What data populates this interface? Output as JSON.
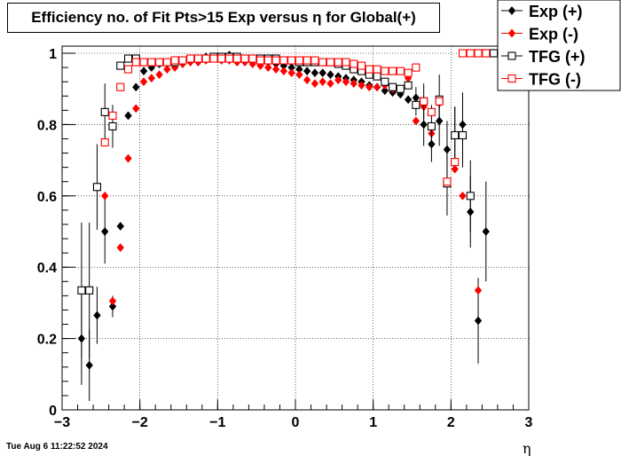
{
  "chart_data": {
    "type": "scatter",
    "title": "Efficiency no. of Fit Pts>15 Exp versus η for Global(+)",
    "xlabel": "η",
    "ylabel": "",
    "xlim": [
      -3,
      3
    ],
    "ylim": [
      0,
      1.02
    ],
    "xticks": [
      "−3",
      "−2",
      "−1",
      "0",
      "1",
      "2",
      "3"
    ],
    "yticks": [
      "0",
      "0.2",
      "0.4",
      "0.6",
      "0.8",
      "1"
    ],
    "grid": true,
    "legend": "top-right",
    "series": [
      {
        "name": "Exp (+)",
        "color": "#000000",
        "marker": "diamond-filled",
        "points": [
          [
            -2.75,
            0.2,
            0.13
          ],
          [
            -2.65,
            0.125,
            0.1
          ],
          [
            -2.55,
            0.265,
            0.08
          ],
          [
            -2.45,
            0.5,
            0.09
          ],
          [
            -2.35,
            0.29,
            0.03
          ],
          [
            -2.25,
            0.515,
            0.0
          ],
          [
            -2.15,
            0.825,
            0.0
          ],
          [
            -2.05,
            0.905,
            0.0
          ],
          [
            -1.95,
            0.95,
            0.0
          ],
          [
            -1.85,
            0.96,
            0.0
          ],
          [
            -1.75,
            0.97,
            0.0
          ],
          [
            -1.65,
            0.975,
            0.0
          ],
          [
            -1.55,
            0.975,
            0.0
          ],
          [
            -1.45,
            0.98,
            0.0
          ],
          [
            -1.35,
            0.985,
            0.0
          ],
          [
            -1.25,
            0.985,
            0.0
          ],
          [
            -1.15,
            0.99,
            0.0
          ],
          [
            -1.05,
            0.99,
            0.0
          ],
          [
            -0.95,
            0.99,
            0.0
          ],
          [
            -0.85,
            0.995,
            0.0
          ],
          [
            -0.75,
            0.99,
            0.0
          ],
          [
            -0.65,
            0.985,
            0.0
          ],
          [
            -0.55,
            0.985,
            0.0
          ],
          [
            -0.45,
            0.98,
            0.0
          ],
          [
            -0.35,
            0.975,
            0.0
          ],
          [
            -0.25,
            0.97,
            0.0
          ],
          [
            -0.15,
            0.965,
            0.0
          ],
          [
            -0.05,
            0.96,
            0.0
          ],
          [
            0.05,
            0.955,
            0.0
          ],
          [
            0.15,
            0.95,
            0.0
          ],
          [
            0.25,
            0.945,
            0.0
          ],
          [
            0.35,
            0.945,
            0.0
          ],
          [
            0.45,
            0.94,
            0.0
          ],
          [
            0.55,
            0.935,
            0.0
          ],
          [
            0.65,
            0.93,
            0.0
          ],
          [
            0.75,
            0.925,
            0.0
          ],
          [
            0.85,
            0.92,
            0.0
          ],
          [
            0.95,
            0.91,
            0.0
          ],
          [
            1.05,
            0.905,
            0.0
          ],
          [
            1.15,
            0.895,
            0.0
          ],
          [
            1.25,
            0.89,
            0.0
          ],
          [
            1.35,
            0.885,
            0.0
          ],
          [
            1.45,
            0.87,
            0.0
          ],
          [
            1.55,
            0.875,
            0.03
          ],
          [
            1.65,
            0.8,
            0.06
          ],
          [
            1.75,
            0.745,
            0.05
          ],
          [
            1.85,
            0.81,
            0.07
          ],
          [
            1.95,
            0.73,
            0.08
          ],
          [
            2.05,
            0.77,
            0.08
          ],
          [
            2.15,
            0.8,
            0.09
          ],
          [
            2.25,
            0.555,
            0.1
          ],
          [
            2.35,
            0.25,
            0.12
          ],
          [
            2.45,
            0.5,
            0.14
          ],
          [
            2.55,
            1.0,
            0.0
          ]
        ]
      },
      {
        "name": "Exp (-)",
        "color": "#ff0000",
        "marker": "diamond-filled",
        "points": [
          [
            -2.45,
            0.6,
            0.0
          ],
          [
            -2.35,
            0.305,
            0.0
          ],
          [
            -2.25,
            0.455,
            0.0
          ],
          [
            -2.15,
            0.705,
            0.0
          ],
          [
            -2.05,
            0.845,
            0.0
          ],
          [
            -1.95,
            0.92,
            0.0
          ],
          [
            -1.85,
            0.93,
            0.0
          ],
          [
            -1.75,
            0.94,
            0.0
          ],
          [
            -1.65,
            0.955,
            0.0
          ],
          [
            -1.55,
            0.96,
            0.0
          ],
          [
            -1.45,
            0.97,
            0.0
          ],
          [
            -1.35,
            0.975,
            0.0
          ],
          [
            -1.25,
            0.975,
            0.0
          ],
          [
            -1.15,
            0.98,
            0.0
          ],
          [
            -1.05,
            0.985,
            0.0
          ],
          [
            -0.95,
            0.98,
            0.0
          ],
          [
            -0.85,
            0.98,
            0.0
          ],
          [
            -0.75,
            0.975,
            0.0
          ],
          [
            -0.65,
            0.975,
            0.0
          ],
          [
            -0.55,
            0.97,
            0.0
          ],
          [
            -0.45,
            0.965,
            0.0
          ],
          [
            -0.35,
            0.96,
            0.0
          ],
          [
            -0.25,
            0.955,
            0.0
          ],
          [
            -0.15,
            0.95,
            0.0
          ],
          [
            -0.05,
            0.945,
            0.0
          ],
          [
            0.05,
            0.94,
            0.0
          ],
          [
            0.15,
            0.925,
            0.0
          ],
          [
            0.25,
            0.915,
            0.0
          ],
          [
            0.35,
            0.92,
            0.0
          ],
          [
            0.45,
            0.915,
            0.0
          ],
          [
            0.55,
            0.925,
            0.0
          ],
          [
            0.65,
            0.92,
            0.0
          ],
          [
            0.75,
            0.915,
            0.0
          ],
          [
            0.85,
            0.91,
            0.0
          ],
          [
            0.95,
            0.905,
            0.0
          ],
          [
            1.05,
            0.905,
            0.0
          ],
          [
            1.15,
            0.91,
            0.0
          ],
          [
            1.25,
            0.9,
            0.0
          ],
          [
            1.35,
            0.9,
            0.0
          ],
          [
            1.45,
            0.93,
            0.0
          ],
          [
            1.55,
            0.81,
            0.0
          ],
          [
            1.65,
            0.85,
            0.0
          ],
          [
            1.75,
            0.775,
            0.0
          ],
          [
            1.85,
            0.86,
            0.0
          ],
          [
            1.95,
            0.64,
            0.0
          ],
          [
            2.05,
            0.675,
            0.0
          ],
          [
            2.15,
            0.6,
            0.0
          ],
          [
            2.35,
            0.335,
            0.0
          ],
          [
            2.45,
            1.0,
            0.0
          ],
          [
            2.55,
            1.0,
            0.0
          ]
        ]
      },
      {
        "name": "TFG (+)",
        "color": "#000000",
        "marker": "square-open",
        "points": [
          [
            -2.75,
            0.335,
            0.19
          ],
          [
            -2.65,
            0.335,
            0.19
          ],
          [
            -2.55,
            0.625,
            0.12
          ],
          [
            -2.45,
            0.835,
            0.08
          ],
          [
            -2.35,
            0.795,
            0.06
          ],
          [
            -2.25,
            0.965,
            0.0
          ],
          [
            -2.15,
            0.985,
            0.0
          ],
          [
            -2.05,
            0.985,
            0.0
          ],
          [
            -1.95,
            0.975,
            0.0
          ],
          [
            -1.85,
            0.975,
            0.0
          ],
          [
            -1.75,
            0.975,
            0.0
          ],
          [
            -1.65,
            0.975,
            0.0
          ],
          [
            -1.55,
            0.975,
            0.0
          ],
          [
            -1.45,
            0.98,
            0.0
          ],
          [
            -1.35,
            0.985,
            0.0
          ],
          [
            -1.25,
            0.985,
            0.0
          ],
          [
            -1.15,
            0.985,
            0.0
          ],
          [
            -1.05,
            0.99,
            0.0
          ],
          [
            -0.95,
            0.99,
            0.0
          ],
          [
            -0.85,
            0.99,
            0.0
          ],
          [
            -0.75,
            0.99,
            0.0
          ],
          [
            -0.65,
            0.985,
            0.0
          ],
          [
            -0.55,
            0.985,
            0.0
          ],
          [
            -0.45,
            0.985,
            0.0
          ],
          [
            -0.35,
            0.985,
            0.0
          ],
          [
            -0.25,
            0.985,
            0.0
          ],
          [
            -0.15,
            0.98,
            0.0
          ],
          [
            -0.05,
            0.98,
            0.0
          ],
          [
            0.05,
            0.975,
            0.0
          ],
          [
            0.15,
            0.975,
            0.0
          ],
          [
            0.25,
            0.975,
            0.0
          ],
          [
            0.35,
            0.975,
            0.0
          ],
          [
            0.45,
            0.975,
            0.0
          ],
          [
            0.55,
            0.97,
            0.0
          ],
          [
            0.65,
            0.965,
            0.0
          ],
          [
            0.75,
            0.955,
            0.0
          ],
          [
            0.85,
            0.95,
            0.0
          ],
          [
            0.95,
            0.94,
            0.0
          ],
          [
            1.05,
            0.935,
            0.0
          ],
          [
            1.15,
            0.92,
            0.0
          ],
          [
            1.25,
            0.905,
            0.0
          ],
          [
            1.35,
            0.9,
            0.0
          ],
          [
            1.45,
            0.91,
            0.0
          ],
          [
            1.55,
            0.855,
            0.03
          ],
          [
            1.65,
            0.865,
            0.05
          ],
          [
            1.75,
            0.795,
            0.06
          ],
          [
            1.85,
            0.87,
            0.07
          ],
          [
            1.95,
            0.635,
            0.09
          ],
          [
            2.05,
            0.77,
            0.08
          ],
          [
            2.15,
            0.77,
            0.09
          ],
          [
            2.25,
            0.6,
            0.1
          ],
          [
            2.35,
            1.0,
            0.0
          ],
          [
            2.45,
            1.0,
            0.0
          ],
          [
            2.55,
            1.0,
            0.0
          ]
        ]
      },
      {
        "name": "TFG (-)",
        "color": "#ff0000",
        "marker": "square-open",
        "points": [
          [
            -2.45,
            0.75,
            0.0
          ],
          [
            -2.35,
            0.825,
            0.0
          ],
          [
            -2.25,
            0.905,
            0.0
          ],
          [
            -2.15,
            0.955,
            0.0
          ],
          [
            -2.05,
            0.975,
            0.0
          ],
          [
            -1.95,
            0.975,
            0.0
          ],
          [
            -1.85,
            0.975,
            0.0
          ],
          [
            -1.75,
            0.975,
            0.0
          ],
          [
            -1.65,
            0.975,
            0.0
          ],
          [
            -1.55,
            0.98,
            0.0
          ],
          [
            -1.45,
            0.98,
            0.0
          ],
          [
            -1.35,
            0.985,
            0.0
          ],
          [
            -1.25,
            0.985,
            0.0
          ],
          [
            -1.15,
            0.985,
            0.0
          ],
          [
            -1.05,
            0.985,
            0.0
          ],
          [
            -0.95,
            0.985,
            0.0
          ],
          [
            -0.85,
            0.985,
            0.0
          ],
          [
            -0.75,
            0.985,
            0.0
          ],
          [
            -0.65,
            0.985,
            0.0
          ],
          [
            -0.55,
            0.985,
            0.0
          ],
          [
            -0.45,
            0.98,
            0.0
          ],
          [
            -0.35,
            0.98,
            0.0
          ],
          [
            -0.25,
            0.98,
            0.0
          ],
          [
            -0.15,
            0.98,
            0.0
          ],
          [
            -0.05,
            0.98,
            0.0
          ],
          [
            0.05,
            0.98,
            0.0
          ],
          [
            0.15,
            0.98,
            0.0
          ],
          [
            0.25,
            0.98,
            0.0
          ],
          [
            0.35,
            0.975,
            0.0
          ],
          [
            0.45,
            0.975,
            0.0
          ],
          [
            0.55,
            0.975,
            0.0
          ],
          [
            0.65,
            0.975,
            0.0
          ],
          [
            0.75,
            0.97,
            0.0
          ],
          [
            0.85,
            0.965,
            0.0
          ],
          [
            0.95,
            0.955,
            0.0
          ],
          [
            1.05,
            0.955,
            0.0
          ],
          [
            1.15,
            0.95,
            0.0
          ],
          [
            1.25,
            0.95,
            0.0
          ],
          [
            1.35,
            0.95,
            0.0
          ],
          [
            1.45,
            0.945,
            0.0
          ],
          [
            1.55,
            0.96,
            0.0
          ],
          [
            1.65,
            0.865,
            0.0
          ],
          [
            1.75,
            0.835,
            0.0
          ],
          [
            1.85,
            0.865,
            0.0
          ],
          [
            1.95,
            0.64,
            0.0
          ],
          [
            2.05,
            0.695,
            0.0
          ],
          [
            2.15,
            1.0,
            0.0
          ],
          [
            2.25,
            1.0,
            0.0
          ],
          [
            2.35,
            1.0,
            0.0
          ],
          [
            2.45,
            1.0,
            0.0
          ]
        ]
      }
    ]
  },
  "footer": {
    "timestamp": "Tue Aug  6 11:22:52 2024"
  }
}
